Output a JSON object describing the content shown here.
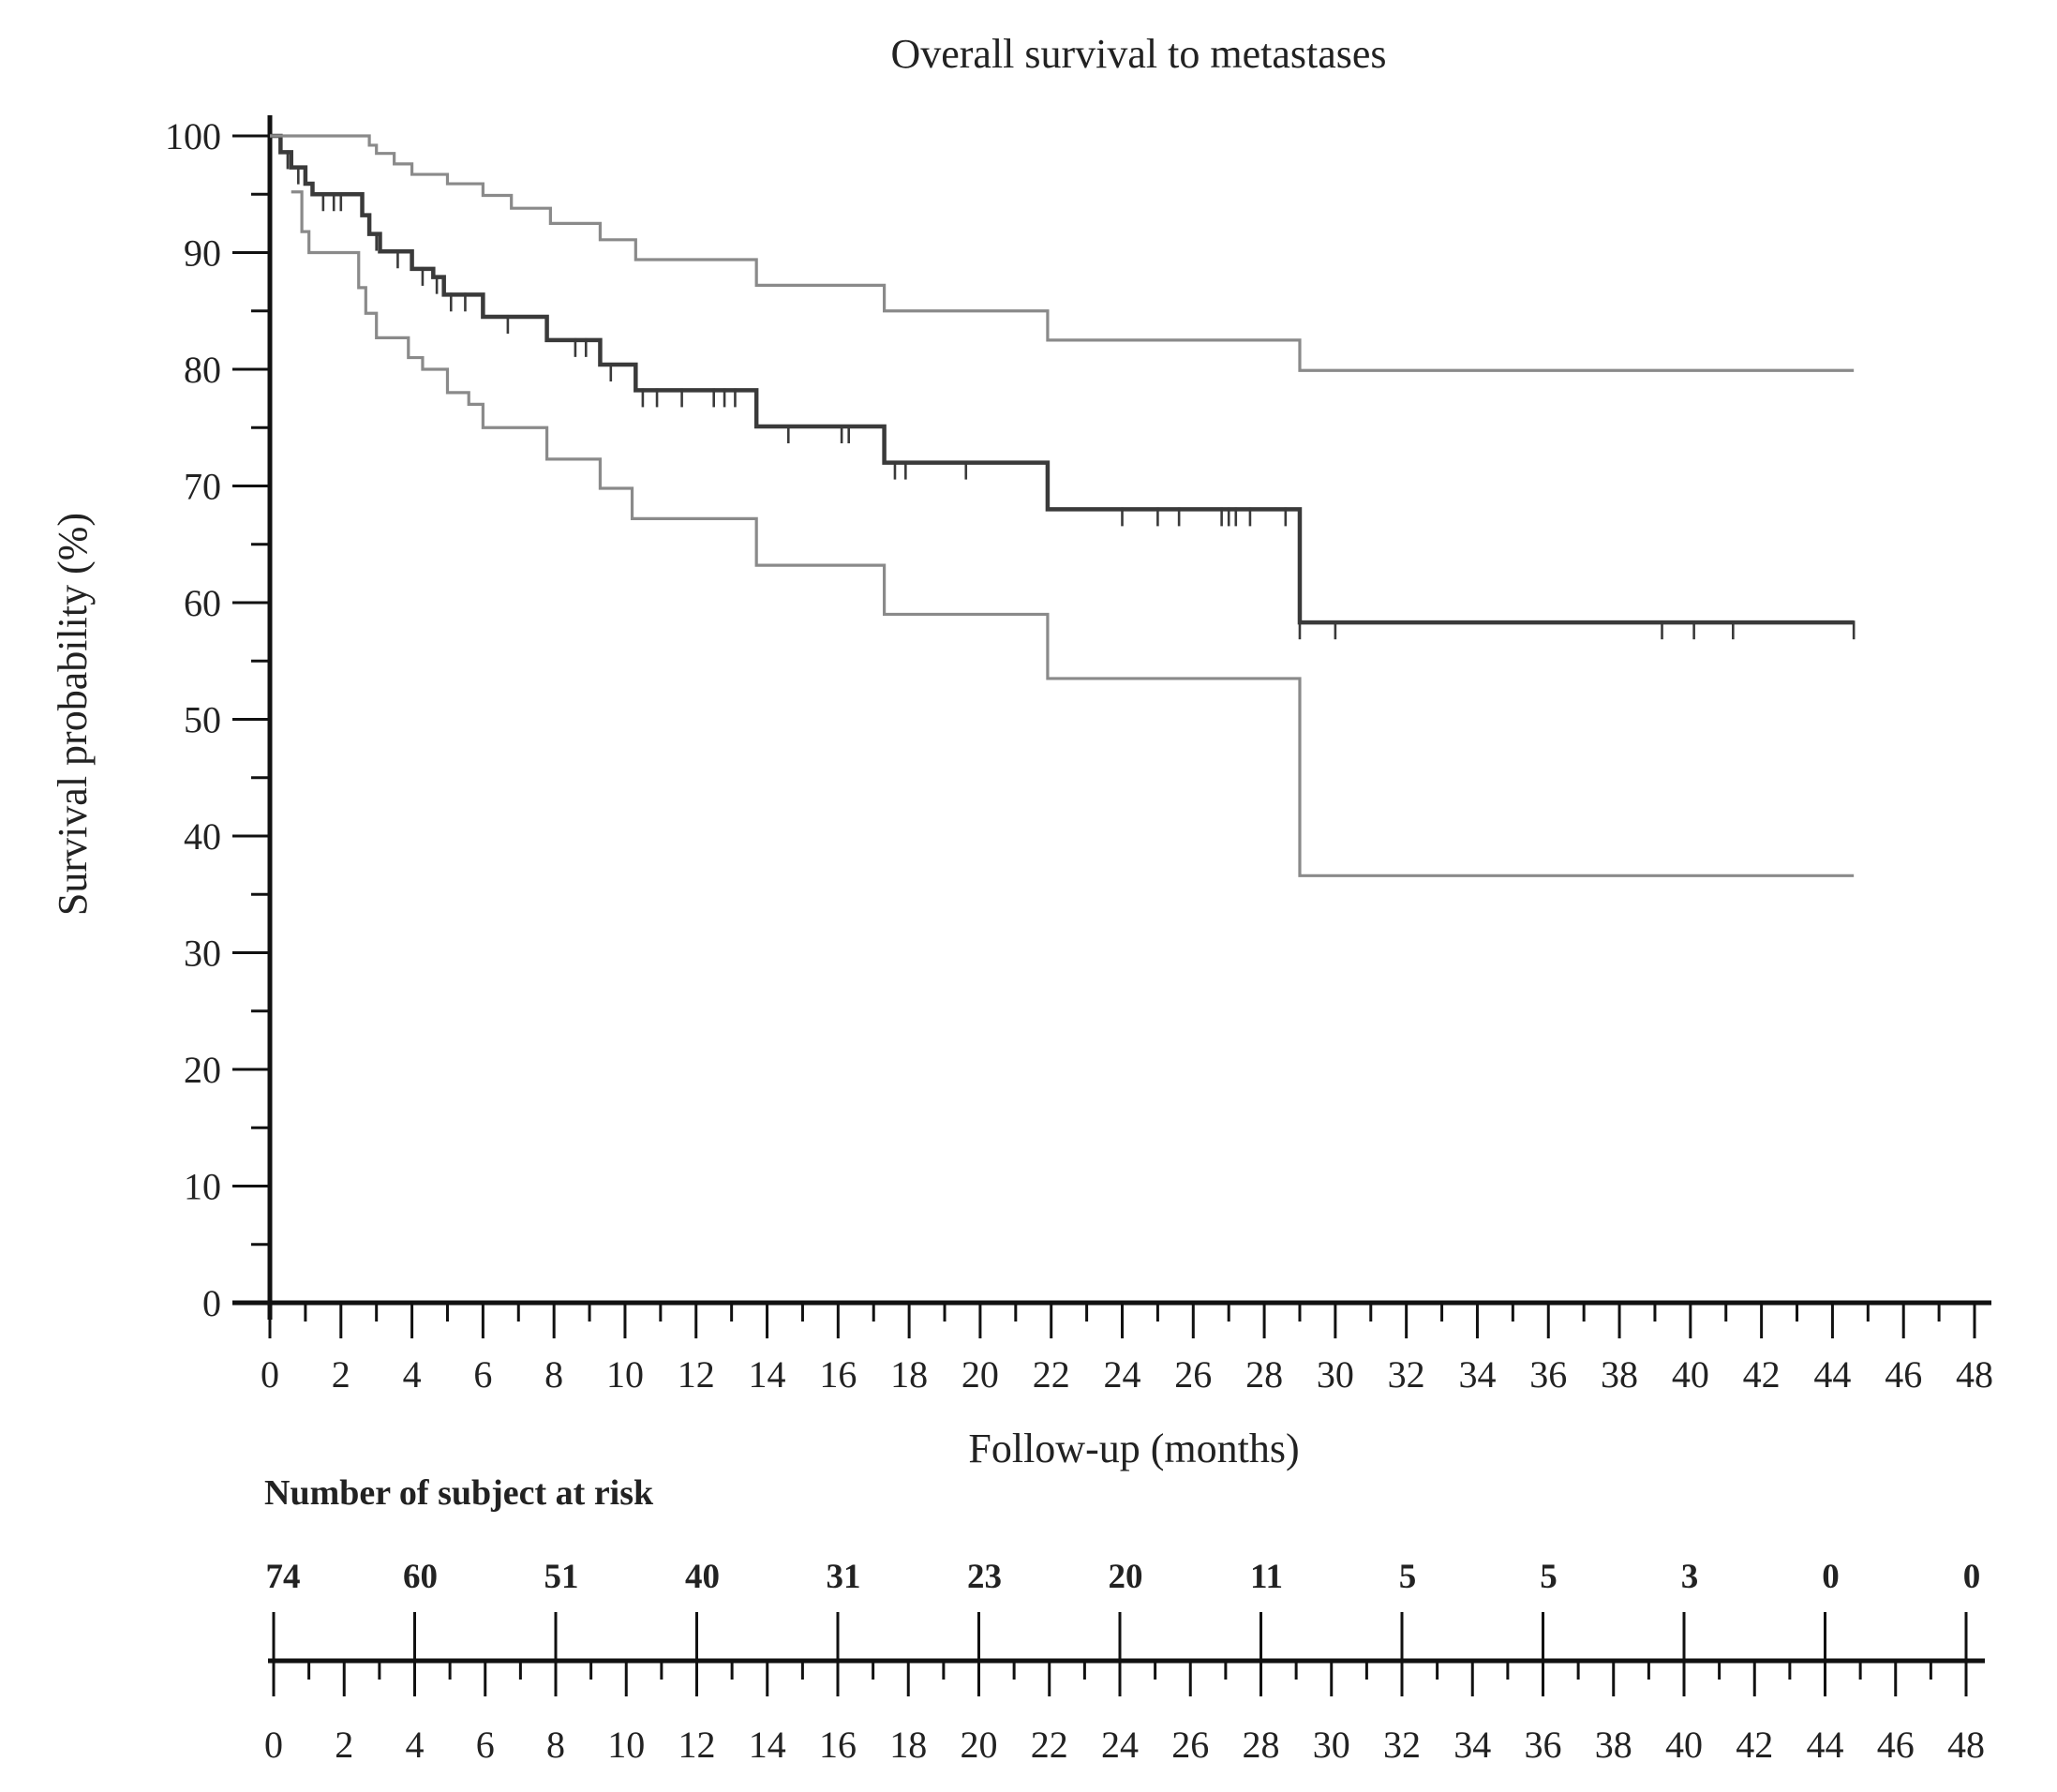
{
  "chart_data": [
    {
      "type": "line",
      "title": "Overall survival to metastases",
      "xlabel": "Follow-up (months)",
      "ylabel": "Survival probability (%)",
      "xlim": [
        0,
        48
      ],
      "ylim": [
        0,
        100
      ],
      "xticks": [
        "0",
        "2",
        "4",
        "6",
        "8",
        "10",
        "12",
        "14",
        "16",
        "18",
        "20",
        "22",
        "24",
        "26",
        "28",
        "30",
        "32",
        "34",
        "36",
        "38",
        "40",
        "42",
        "44",
        "46",
        "48"
      ],
      "yticks": [
        "0",
        "10",
        "20",
        "30",
        "40",
        "50",
        "60",
        "70",
        "80",
        "90",
        "100"
      ],
      "grid": false,
      "step": true,
      "series": [
        {
          "role": "estimate",
          "color": "#3a3a3a",
          "points": [
            [
              0,
              100
            ],
            [
              0.3,
              98.6
            ],
            [
              0.6,
              97.3
            ],
            [
              1.0,
              95.9
            ],
            [
              1.2,
              95.0
            ],
            [
              2.5,
              95.0
            ],
            [
              2.6,
              93.2
            ],
            [
              2.8,
              91.6
            ],
            [
              3.1,
              90.1
            ],
            [
              4.0,
              88.6
            ],
            [
              4.6,
              87.9
            ],
            [
              4.9,
              86.4
            ],
            [
              6.0,
              84.5
            ],
            [
              7.8,
              82.5
            ],
            [
              9.3,
              80.4
            ],
            [
              10.3,
              78.2
            ],
            [
              13.7,
              75.1
            ],
            [
              17.3,
              72.0
            ],
            [
              21.9,
              68.0
            ],
            [
              29.0,
              58.3
            ],
            [
              44.6,
              58.3
            ]
          ],
          "censored": [
            [
              0.5,
              98.6
            ],
            [
              0.8,
              97.3
            ],
            [
              1.5,
              95.0
            ],
            [
              1.8,
              95.0
            ],
            [
              2.0,
              95.0
            ],
            [
              3.0,
              91.6
            ],
            [
              3.6,
              90.1
            ],
            [
              4.3,
              88.6
            ],
            [
              4.7,
              87.9
            ],
            [
              5.1,
              86.4
            ],
            [
              5.5,
              86.4
            ],
            [
              6.7,
              84.5
            ],
            [
              8.6,
              82.5
            ],
            [
              8.9,
              82.5
            ],
            [
              9.6,
              80.4
            ],
            [
              10.5,
              78.2
            ],
            [
              10.9,
              78.2
            ],
            [
              11.6,
              78.2
            ],
            [
              12.5,
              78.2
            ],
            [
              12.8,
              78.2
            ],
            [
              13.1,
              78.2
            ],
            [
              14.6,
              75.1
            ],
            [
              16.1,
              75.1
            ],
            [
              16.3,
              75.1
            ],
            [
              17.6,
              72.0
            ],
            [
              17.9,
              72.0
            ],
            [
              19.6,
              72.0
            ],
            [
              24.0,
              68.0
            ],
            [
              25.0,
              68.0
            ],
            [
              25.6,
              68.0
            ],
            [
              26.8,
              68.0
            ],
            [
              27.0,
              68.0
            ],
            [
              27.2,
              68.0
            ],
            [
              27.6,
              68.0
            ],
            [
              28.6,
              68.0
            ],
            [
              29.0,
              58.3
            ],
            [
              30.0,
              58.3
            ],
            [
              39.2,
              58.3
            ],
            [
              40.1,
              58.3
            ],
            [
              41.2,
              58.3
            ],
            [
              44.6,
              58.3
            ]
          ]
        },
        {
          "role": "upper-ci",
          "color": "#8a8a8a",
          "points": [
            [
              0,
              100
            ],
            [
              2.5,
              100
            ],
            [
              2.8,
              99.2
            ],
            [
              3.0,
              98.5
            ],
            [
              3.5,
              97.6
            ],
            [
              4.0,
              96.7
            ],
            [
              5.0,
              95.9
            ],
            [
              6.0,
              94.9
            ],
            [
              6.8,
              93.8
            ],
            [
              7.9,
              92.5
            ],
            [
              9.3,
              91.1
            ],
            [
              10.3,
              89.4
            ],
            [
              13.7,
              87.2
            ],
            [
              17.3,
              85.0
            ],
            [
              21.9,
              82.5
            ],
            [
              29.0,
              79.9
            ],
            [
              44.6,
              79.9
            ]
          ]
        },
        {
          "role": "lower-ci",
          "color": "#8a8a8a",
          "points": [
            [
              0.6,
              95.2
            ],
            [
              0.9,
              91.8
            ],
            [
              1.1,
              90.0
            ],
            [
              2.4,
              90.0
            ],
            [
              2.5,
              87.0
            ],
            [
              2.7,
              84.8
            ],
            [
              3.0,
              82.7
            ],
            [
              3.9,
              81.0
            ],
            [
              4.3,
              80.0
            ],
            [
              5.0,
              78.0
            ],
            [
              5.6,
              77.0
            ],
            [
              6.0,
              75.0
            ],
            [
              7.8,
              72.3
            ],
            [
              9.3,
              69.8
            ],
            [
              10.2,
              67.2
            ],
            [
              13.7,
              63.2
            ],
            [
              17.3,
              59.0
            ],
            [
              21.9,
              53.5
            ],
            [
              29.0,
              36.6
            ],
            [
              44.6,
              36.6
            ]
          ]
        }
      ]
    },
    {
      "type": "table",
      "title": "Number of subject at risk",
      "xlim": [
        0,
        48
      ],
      "xticks": [
        "0",
        "2",
        "4",
        "6",
        "8",
        "10",
        "12",
        "14",
        "16",
        "18",
        "20",
        "22",
        "24",
        "26",
        "28",
        "30",
        "32",
        "34",
        "36",
        "38",
        "40",
        "42",
        "44",
        "46",
        "48"
      ],
      "risk": [
        {
          "x": 0,
          "n": "74"
        },
        {
          "x": 4,
          "n": "60"
        },
        {
          "x": 8,
          "n": "51"
        },
        {
          "x": 12,
          "n": "40"
        },
        {
          "x": 16,
          "n": "31"
        },
        {
          "x": 20,
          "n": "23"
        },
        {
          "x": 24,
          "n": "20"
        },
        {
          "x": 28,
          "n": "11"
        },
        {
          "x": 32,
          "n": "5"
        },
        {
          "x": 36,
          "n": "5"
        },
        {
          "x": 40,
          "n": "3"
        },
        {
          "x": 44,
          "n": "0"
        },
        {
          "x": 48,
          "n": "0"
        }
      ]
    }
  ]
}
